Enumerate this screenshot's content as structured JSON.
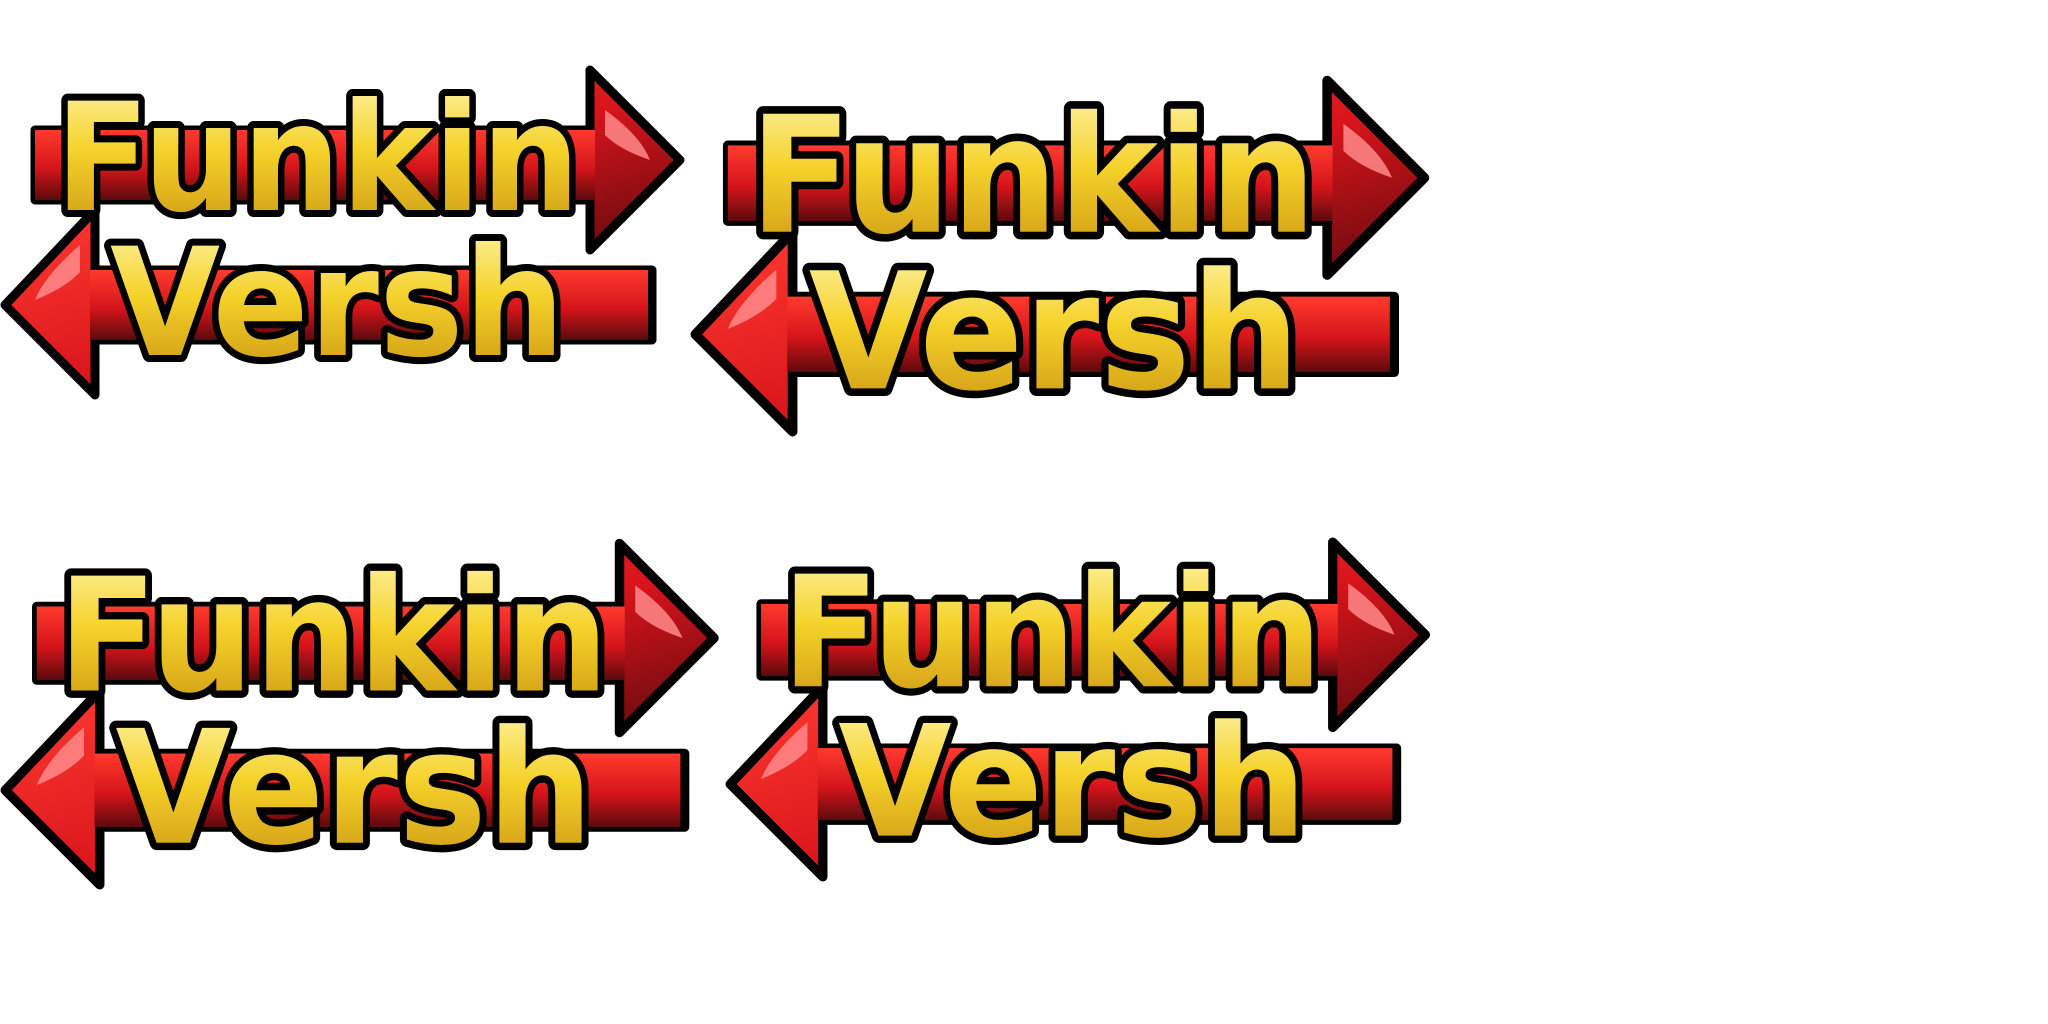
{
  "logo": {
    "line1": "Funkin",
    "line2": "Versh"
  },
  "frames": [
    {
      "line1": "Funkin",
      "line2": "Versh"
    },
    {
      "line1": "Funkin",
      "line2": "Versh"
    },
    {
      "line1": "Funkin",
      "line2": "Versh"
    },
    {
      "line1": "Funkin",
      "line2": "Versh"
    }
  ],
  "colors": {
    "background": "#ffffff",
    "outline": "#000000",
    "arrow_red": "#e5191b",
    "arrow_dark": "#5c0a0c",
    "arrow_highlight": "#ff8a8a",
    "text_yellow_top": "#fff6b0",
    "text_yellow_mid": "#f5d22a",
    "text_yellow_bottom": "#c78f10"
  }
}
